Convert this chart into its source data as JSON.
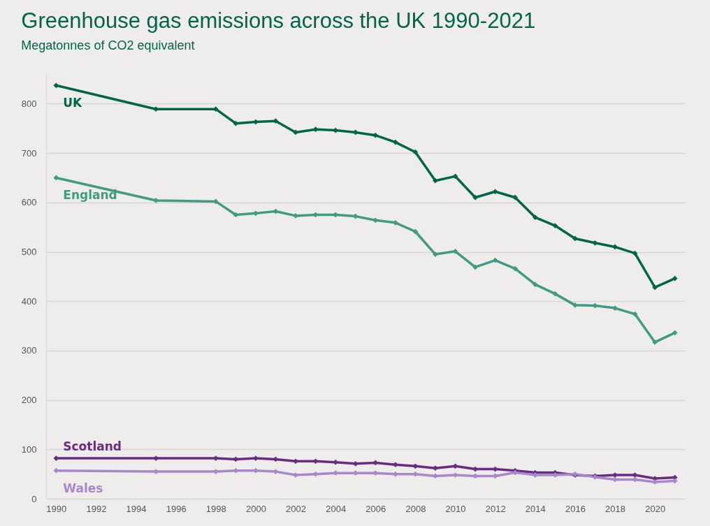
{
  "chart_data": {
    "type": "line",
    "title": "Greenhouse gas emissions across the UK 1990-2021",
    "subtitle": "Megatonnes of CO2 equivalent",
    "x": [
      1990,
      1995,
      1998,
      1999,
      2000,
      2001,
      2002,
      2003,
      2004,
      2005,
      2006,
      2007,
      2008,
      2009,
      2010,
      2011,
      2012,
      2013,
      2014,
      2015,
      2016,
      2017,
      2018,
      2019,
      2020,
      2021
    ],
    "series": [
      {
        "name": "UK",
        "color": "#00664a",
        "values": [
          837,
          789,
          789,
          760,
          763,
          765,
          742,
          748,
          746,
          742,
          736,
          722,
          702,
          644,
          653,
          610,
          622,
          610,
          570,
          553,
          527,
          518,
          510,
          497,
          428,
          446
        ]
      },
      {
        "name": "England",
        "color": "#3f9c84",
        "values": [
          650,
          604,
          602,
          575,
          578,
          582,
          573,
          575,
          575,
          572,
          564,
          559,
          541,
          495,
          501,
          469,
          483,
          466,
          434,
          415,
          392,
          391,
          386,
          374,
          317,
          336
        ]
      },
      {
        "name": "Scotland",
        "color": "#6a2c83",
        "values": [
          82,
          82,
          82,
          80,
          82,
          80,
          76,
          76,
          74,
          71,
          73,
          69,
          66,
          62,
          66,
          60,
          60,
          57,
          53,
          53,
          48,
          46,
          48,
          48,
          41,
          43
        ]
      },
      {
        "name": "Wales",
        "color": "#a887cc",
        "values": [
          57,
          55,
          55,
          57,
          57,
          55,
          48,
          50,
          52,
          52,
          52,
          50,
          50,
          46,
          48,
          46,
          46,
          53,
          48,
          48,
          50,
          44,
          39,
          39,
          34,
          36
        ]
      }
    ],
    "xlim": [
      1989.5,
      2021.5
    ],
    "xticks": [
      1990,
      1992,
      1994,
      1996,
      1998,
      2000,
      2002,
      2004,
      2006,
      2008,
      2010,
      2012,
      2014,
      2016,
      2018,
      2020
    ],
    "ylim": [
      0,
      860
    ],
    "yticks": [
      0,
      100,
      200,
      300,
      400,
      500,
      600,
      700,
      800
    ],
    "grid": "y",
    "legend": false,
    "marker": "diamond",
    "line_style": "solid"
  }
}
